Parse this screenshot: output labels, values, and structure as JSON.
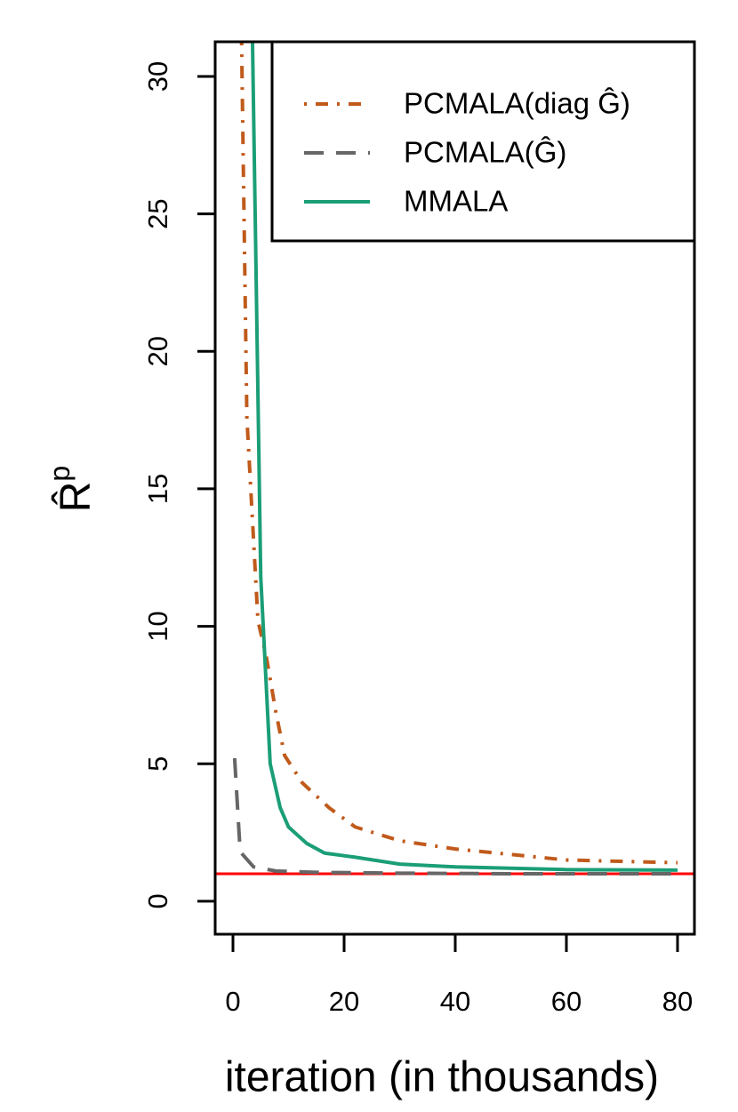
{
  "chart_data": {
    "type": "line",
    "xlabel": "iteration (in thousands)",
    "ylabel": {
      "base": "R̂",
      "sup": "p"
    },
    "xlim": [
      -3.2,
      83.04
    ],
    "ylim": [
      -1.2,
      31.26
    ],
    "xticks": [
      0,
      20,
      40,
      60,
      80
    ],
    "yticks": [
      0,
      5,
      10,
      15,
      20,
      25,
      30
    ],
    "legend": "top-right",
    "reference_line": {
      "value": 1,
      "color": "#ff0000"
    },
    "series": [
      {
        "name": "PCMALA(diag Ĝ)",
        "color": "#c05a1b",
        "dash": "dotdash",
        "x": [
          1.5,
          2.5,
          4.5,
          6,
          7.7,
          9.3,
          12.5,
          17.3,
          22,
          30,
          40,
          50,
          60,
          70,
          80
        ],
        "values": [
          32,
          17.6,
          10.2,
          8.9,
          6.9,
          5.3,
          4.3,
          3.4,
          2.7,
          2.2,
          1.9,
          1.7,
          1.5,
          1.45,
          1.4
        ]
      },
      {
        "name": "PCMALA(Ĝ)",
        "color": "#666666",
        "dash": "dashed",
        "x": [
          0.3,
          1.3,
          3.7,
          7.7,
          15,
          30,
          50,
          80
        ],
        "values": [
          5.2,
          1.8,
          1.25,
          1.1,
          1.05,
          1.02,
          1.0,
          1.0
        ]
      },
      {
        "name": "MMALA",
        "color": "#1b9e77",
        "dash": "solid",
        "x": [
          3.5,
          5,
          6.7,
          8.5,
          10,
          13.3,
          16.5,
          22,
          30,
          40,
          60,
          80
        ],
        "values": [
          31.5,
          11.8,
          5.0,
          3.4,
          2.7,
          2.1,
          1.75,
          1.6,
          1.35,
          1.25,
          1.15,
          1.13
        ]
      }
    ]
  }
}
